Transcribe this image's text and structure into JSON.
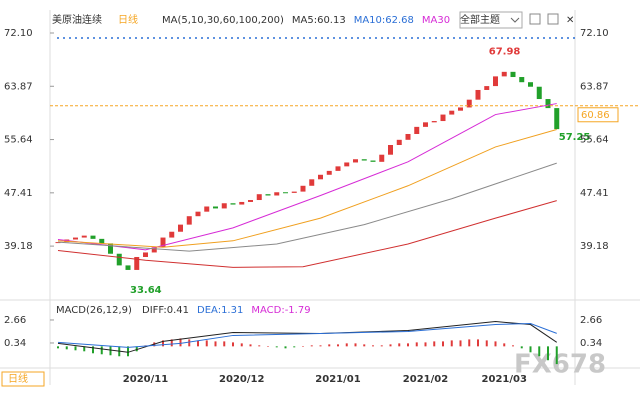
{
  "chart_data": [
    {
      "type": "candlestick",
      "title": "美原油连续",
      "period": "日线",
      "legend": [
        "MA(5,10,30,60,100,200)",
        "MA5:60.13",
        "MA10:62.68",
        "MA30"
      ],
      "legend_colors": [
        "#333333",
        "#333333",
        "#2b6fd6",
        "#d62bd6"
      ],
      "categories": [
        null,
        null,
        null,
        null,
        null,
        null,
        null,
        null,
        null,
        null,
        "2020/11",
        null,
        null,
        null,
        null,
        null,
        null,
        null,
        null,
        null,
        null,
        "2020/12",
        null,
        null,
        null,
        null,
        null,
        null,
        null,
        null,
        null,
        null,
        "2021/01",
        null,
        null,
        null,
        null,
        null,
        null,
        null,
        null,
        null,
        "2021/02",
        null,
        null,
        null,
        null,
        null,
        null,
        null,
        null,
        "2021/03",
        null,
        null,
        null,
        null,
        null,
        null
      ],
      "values": [
        39.8,
        40.2,
        40.5,
        40.8,
        40.3,
        39.6,
        38.0,
        36.2,
        35.5,
        37.5,
        38.2,
        39.0,
        40.5,
        41.4,
        42.5,
        43.8,
        44.5,
        45.3,
        45.0,
        45.8,
        45.6,
        46.0,
        46.3,
        47.2,
        47.0,
        47.5,
        47.4,
        47.6,
        48.5,
        49.5,
        50.2,
        50.8,
        51.5,
        52.1,
        52.6,
        52.4,
        52.2,
        53.3,
        54.8,
        55.6,
        56.5,
        57.6,
        58.3,
        58.5,
        59.5,
        60.1,
        60.6,
        61.8,
        63.3,
        63.9,
        65.4,
        66.1,
        65.3,
        64.5,
        63.8,
        61.9,
        60.5,
        57.25
      ],
      "up_color": "#e03a3a",
      "down_color": "#21a02a",
      "lines": [
        {
          "color": "#d62bd6",
          "x": [
            0,
            10,
            20,
            30,
            40,
            50,
            57
          ],
          "values": [
            40.2,
            38.6,
            42.0,
            47.0,
            52.2,
            59.5,
            61.2
          ]
        },
        {
          "color": "#f0a020",
          "x": [
            0,
            12,
            20,
            30,
            40,
            50,
            57
          ],
          "values": [
            40.0,
            39.0,
            40.0,
            43.5,
            48.5,
            54.5,
            57.2
          ]
        },
        {
          "color": "#8a8a8a",
          "x": [
            0,
            15,
            25,
            35,
            45,
            57
          ],
          "values": [
            39.8,
            38.4,
            39.5,
            42.5,
            46.5,
            52.0
          ]
        },
        {
          "color": "#d03030",
          "x": [
            0,
            10,
            20,
            28,
            40,
            50,
            57
          ],
          "values": [
            38.5,
            37.0,
            35.9,
            36.0,
            39.5,
            43.5,
            46.2
          ]
        }
      ],
      "annotations": [
        {
          "value": 67.98,
          "index": 49,
          "color": "#e03a3a"
        },
        {
          "value": 33.64,
          "index": 8,
          "color": "#21a02a"
        },
        {
          "value": 57.25,
          "index": 57,
          "color": "#21a02a"
        }
      ],
      "last_price": 60.86,
      "ylim": [
        32.4,
        73.8
      ],
      "yticks": [
        {
          "value": 72.1,
          "label": "72.10"
        },
        63.87,
        55.64,
        47.41,
        39.18
      ]
    },
    {
      "type": "macd",
      "title": "MACD(26,12,9)",
      "legend": [
        "DIFF:0.41",
        "DEA:1.31",
        "MACD:-1.79"
      ],
      "legend_colors": [
        "#333333",
        "#2b6fd6",
        "#d62bd6"
      ],
      "values": [
        -0.2,
        -0.3,
        -0.4,
        -0.5,
        -0.7,
        -0.8,
        -0.9,
        -1.0,
        -1.0,
        -0.5,
        0.1,
        0.4,
        0.6,
        0.7,
        0.8,
        0.7,
        0.6,
        0.6,
        0.5,
        0.5,
        0.4,
        0.3,
        0.2,
        0.1,
        0.0,
        -0.1,
        -0.2,
        -0.1,
        0.0,
        0.1,
        0.1,
        0.2,
        0.2,
        0.3,
        0.3,
        0.2,
        0.1,
        0.1,
        0.2,
        0.3,
        0.3,
        0.4,
        0.4,
        0.5,
        0.5,
        0.6,
        0.6,
        0.7,
        0.7,
        0.6,
        0.5,
        0.3,
        0.1,
        -0.2,
        -0.6,
        -1.0,
        -1.4,
        -1.79
      ],
      "up_color": "#e03a3a",
      "down_color": "#21a02a",
      "lines": [
        {
          "color": "#222222",
          "x": [
            0,
            8,
            12,
            20,
            30,
            40,
            50,
            54,
            57
          ],
          "values": [
            0.3,
            -0.6,
            0.5,
            1.4,
            1.3,
            1.6,
            2.5,
            2.2,
            0.41
          ]
        },
        {
          "color": "#2b6fd6",
          "x": [
            0,
            8,
            14,
            20,
            30,
            40,
            50,
            54,
            57
          ],
          "values": [
            0.4,
            -0.1,
            0.3,
            1.1,
            1.3,
            1.5,
            2.2,
            2.3,
            1.31
          ]
        }
      ],
      "ylim": [
        -2.89,
        4.17
      ],
      "yticks": [
        2.66,
        0.34
      ]
    }
  ],
  "button": "全部主题",
  "watermark": "FX678"
}
